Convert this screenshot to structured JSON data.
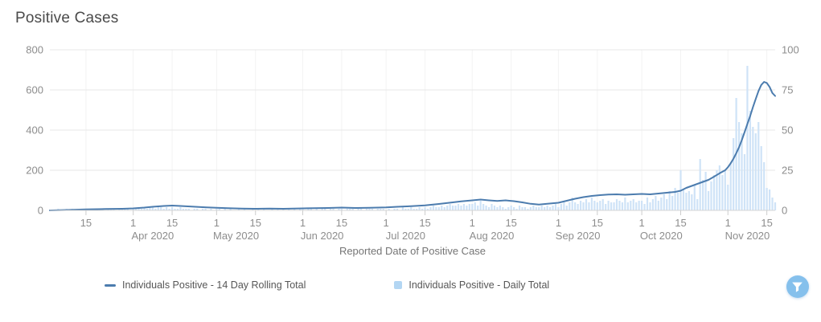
{
  "title": "Positive Cases",
  "colors": {
    "line": "#4c7cae",
    "bar": "#cfe3f7",
    "legend_square": "#b3d6f3",
    "h_grid": "#e7e7e7",
    "v_grid": "#f3f3f3",
    "axis_line": "#d4d4d4",
    "tick": "#cdcdcd",
    "axis_label": "#8d8d8d",
    "filter_button": "#85c0ec"
  },
  "chart_data": {
    "type": "mixed",
    "title": "Positive Cases",
    "xlabel": "Reported Date of Positive Case",
    "grid": "on",
    "legend_position": "bottom",
    "x_axis": {
      "start": "2020-03-02",
      "end": "2020-11-18",
      "ticks": [
        {
          "date": "2020-03-15",
          "label": "15"
        },
        {
          "date": "2020-04-01",
          "label": "1"
        },
        {
          "date": "2020-04-15",
          "label": "15"
        },
        {
          "date": "2020-05-01",
          "label": "1"
        },
        {
          "date": "2020-05-15",
          "label": "15"
        },
        {
          "date": "2020-06-01",
          "label": "1"
        },
        {
          "date": "2020-06-15",
          "label": "15"
        },
        {
          "date": "2020-07-01",
          "label": "1"
        },
        {
          "date": "2020-07-15",
          "label": "15"
        },
        {
          "date": "2020-08-01",
          "label": "1"
        },
        {
          "date": "2020-08-15",
          "label": "15"
        },
        {
          "date": "2020-09-01",
          "label": "1"
        },
        {
          "date": "2020-09-15",
          "label": "15"
        },
        {
          "date": "2020-10-01",
          "label": "1"
        },
        {
          "date": "2020-10-15",
          "label": "15"
        },
        {
          "date": "2020-11-01",
          "label": "1"
        },
        {
          "date": "2020-11-15",
          "label": "15"
        }
      ],
      "month_labels": [
        {
          "date": "2020-04-08",
          "label": "Apr 2020"
        },
        {
          "date": "2020-05-08",
          "label": "May 2020"
        },
        {
          "date": "2020-06-08",
          "label": "Jun 2020"
        },
        {
          "date": "2020-07-08",
          "label": "Jul 2020"
        },
        {
          "date": "2020-08-08",
          "label": "Aug 2020"
        },
        {
          "date": "2020-09-08",
          "label": "Sep 2020"
        },
        {
          "date": "2020-10-08",
          "label": "Oct 2020"
        },
        {
          "date": "2020-11-08",
          "label": "Nov 2020"
        }
      ]
    },
    "y_axis_left": {
      "ticks": [
        0,
        200,
        400,
        600,
        800
      ],
      "max": 800
    },
    "y_axis_right": {
      "ticks": [
        0,
        25,
        50,
        75,
        100
      ],
      "max": 100
    },
    "series": [
      {
        "name": "Individuals Positive - 14 Day Rolling Total",
        "type": "line",
        "axis": "left",
        "points": [
          [
            "2020-03-02",
            0
          ],
          [
            "2020-03-08",
            2
          ],
          [
            "2020-03-15",
            5
          ],
          [
            "2020-03-22",
            7
          ],
          [
            "2020-03-28",
            8
          ],
          [
            "2020-04-01",
            10
          ],
          [
            "2020-04-05",
            14
          ],
          [
            "2020-04-08",
            18
          ],
          [
            "2020-04-12",
            22
          ],
          [
            "2020-04-15",
            24
          ],
          [
            "2020-04-18",
            22
          ],
          [
            "2020-04-22",
            19
          ],
          [
            "2020-04-26",
            16
          ],
          [
            "2020-05-01",
            13
          ],
          [
            "2020-05-05",
            11
          ],
          [
            "2020-05-10",
            9
          ],
          [
            "2020-05-15",
            8
          ],
          [
            "2020-05-20",
            9
          ],
          [
            "2020-05-25",
            8
          ],
          [
            "2020-06-01",
            10
          ],
          [
            "2020-06-05",
            11
          ],
          [
            "2020-06-10",
            12
          ],
          [
            "2020-06-15",
            14
          ],
          [
            "2020-06-20",
            12
          ],
          [
            "2020-06-25",
            13
          ],
          [
            "2020-07-01",
            15
          ],
          [
            "2020-07-05",
            18
          ],
          [
            "2020-07-10",
            21
          ],
          [
            "2020-07-15",
            25
          ],
          [
            "2020-07-20",
            32
          ],
          [
            "2020-07-25",
            40
          ],
          [
            "2020-07-28",
            45
          ],
          [
            "2020-08-01",
            50
          ],
          [
            "2020-08-04",
            54
          ],
          [
            "2020-08-07",
            50
          ],
          [
            "2020-08-10",
            47
          ],
          [
            "2020-08-13",
            50
          ],
          [
            "2020-08-16",
            46
          ],
          [
            "2020-08-19",
            40
          ],
          [
            "2020-08-22",
            33
          ],
          [
            "2020-08-25",
            29
          ],
          [
            "2020-08-28",
            33
          ],
          [
            "2020-09-01",
            38
          ],
          [
            "2020-09-04",
            48
          ],
          [
            "2020-09-07",
            58
          ],
          [
            "2020-09-10",
            66
          ],
          [
            "2020-09-13",
            72
          ],
          [
            "2020-09-16",
            76
          ],
          [
            "2020-09-19",
            79
          ],
          [
            "2020-09-22",
            80
          ],
          [
            "2020-09-25",
            78
          ],
          [
            "2020-09-28",
            80
          ],
          [
            "2020-10-01",
            82
          ],
          [
            "2020-10-04",
            80
          ],
          [
            "2020-10-07",
            84
          ],
          [
            "2020-10-10",
            88
          ],
          [
            "2020-10-13",
            92
          ],
          [
            "2020-10-15",
            98
          ],
          [
            "2020-10-17",
            112
          ],
          [
            "2020-10-19",
            122
          ],
          [
            "2020-10-21",
            132
          ],
          [
            "2020-10-23",
            142
          ],
          [
            "2020-10-25",
            152
          ],
          [
            "2020-10-27",
            168
          ],
          [
            "2020-10-29",
            185
          ],
          [
            "2020-10-31",
            200
          ],
          [
            "2020-11-01",
            215
          ],
          [
            "2020-11-02",
            235
          ],
          [
            "2020-11-03",
            258
          ],
          [
            "2020-11-04",
            285
          ],
          [
            "2020-11-05",
            315
          ],
          [
            "2020-11-06",
            350
          ],
          [
            "2020-11-07",
            390
          ],
          [
            "2020-11-08",
            430
          ],
          [
            "2020-11-09",
            470
          ],
          [
            "2020-11-10",
            515
          ],
          [
            "2020-11-11",
            555
          ],
          [
            "2020-11-12",
            595
          ],
          [
            "2020-11-13",
            625
          ],
          [
            "2020-11-14",
            640
          ],
          [
            "2020-11-15",
            635
          ],
          [
            "2020-11-16",
            615
          ],
          [
            "2020-11-17",
            585
          ],
          [
            "2020-11-18",
            570
          ]
        ]
      },
      {
        "name": "Individuals Positive - Daily Total",
        "type": "bar",
        "axis": "right",
        "start_date": "2020-03-02",
        "daily_values": [
          0,
          0,
          0,
          1,
          0,
          0,
          1,
          0,
          1,
          0,
          0,
          1,
          0,
          1,
          1,
          0,
          1,
          0,
          1,
          1,
          0,
          1,
          1,
          1,
          0,
          1,
          1,
          1,
          1,
          0,
          1,
          1,
          2,
          1,
          2,
          1,
          2,
          2,
          1,
          2,
          2,
          1,
          2,
          1,
          2,
          1,
          1,
          2,
          1,
          1,
          1,
          0,
          1,
          1,
          0,
          1,
          1,
          0,
          1,
          0,
          1,
          1,
          0,
          1,
          0,
          1,
          0,
          0,
          1,
          0,
          1,
          0,
          0,
          1,
          0,
          1,
          0,
          1,
          0,
          0,
          1,
          0,
          1,
          0,
          1,
          0,
          1,
          0,
          1,
          0,
          1,
          1,
          0,
          1,
          1,
          0,
          1,
          0,
          1,
          1,
          0,
          1,
          1,
          0,
          1,
          1,
          0,
          1,
          1,
          1,
          0,
          1,
          1,
          0,
          1,
          1,
          1,
          0,
          1,
          1,
          1,
          0,
          1,
          0,
          1,
          1,
          0,
          2,
          1,
          1,
          2,
          1,
          1,
          2,
          1,
          2,
          1,
          2,
          3,
          2,
          2,
          3,
          2,
          3,
          4,
          3,
          3,
          4,
          3,
          4,
          3,
          4,
          4,
          5,
          3,
          6,
          4,
          3,
          2,
          4,
          3,
          2,
          3,
          2,
          1,
          2,
          3,
          2,
          1,
          3,
          2,
          2,
          1,
          2,
          3,
          2,
          2,
          3,
          2,
          3,
          2,
          3,
          4,
          2,
          4,
          6,
          3,
          5,
          8,
          5,
          4,
          6,
          5,
          7,
          5,
          8,
          6,
          5,
          6,
          7,
          4,
          6,
          5,
          5,
          7,
          6,
          5,
          8,
          5,
          6,
          7,
          5,
          6,
          6,
          4,
          8,
          5,
          7,
          9,
          6,
          8,
          10,
          7,
          12,
          9,
          14,
          11,
          25,
          13,
          11,
          12,
          10,
          16,
          7,
          32,
          19,
          24,
          12,
          18,
          22,
          25,
          28,
          22,
          25,
          16,
          30,
          45,
          70,
          55,
          48,
          35,
          90,
          62,
          52,
          48,
          55,
          40,
          30,
          14,
          13,
          8,
          5
        ]
      }
    ]
  },
  "legend": {
    "items": [
      {
        "label": "Individuals Positive - 14 Day Rolling Total",
        "marker": "line"
      },
      {
        "label": "Individuals Positive - Daily Total",
        "marker": "square"
      }
    ]
  },
  "controls": {
    "filter_button": {
      "icon": "funnel-icon"
    }
  }
}
